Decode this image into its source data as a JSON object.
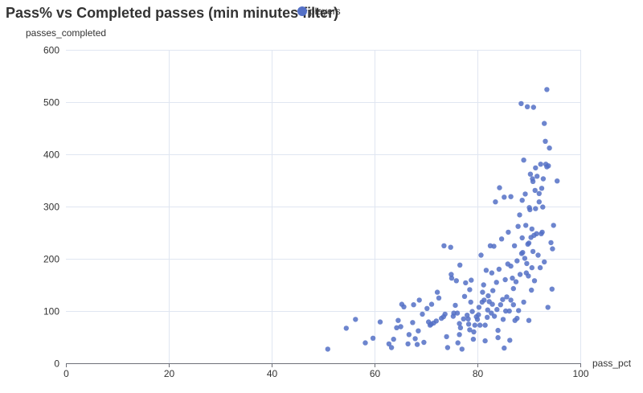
{
  "chart_data": {
    "type": "scatter",
    "title": "Pass% vs Completed passes (min minutes filter)",
    "xlabel": "pass_pct",
    "ylabel": "passes_completed",
    "xlim": [
      0,
      100
    ],
    "ylim": [
      0,
      600
    ],
    "x_ticks": [
      0,
      20,
      40,
      60,
      80,
      100
    ],
    "y_ticks": [
      0,
      100,
      200,
      300,
      400,
      500,
      600
    ],
    "grid": true,
    "legend_position": "top",
    "series": [
      {
        "name": "players",
        "color": "#5470c6",
        "points": [
          [
            50.9,
            27
          ],
          [
            54.5,
            67
          ],
          [
            56.3,
            84
          ],
          [
            58.2,
            39
          ],
          [
            59.7,
            48
          ],
          [
            61.1,
            79
          ],
          [
            62.8,
            37
          ],
          [
            63.3,
            30
          ],
          [
            63.7,
            46
          ],
          [
            64.3,
            68
          ],
          [
            64.6,
            82
          ],
          [
            65.1,
            70
          ],
          [
            65.3,
            113
          ],
          [
            65.7,
            108
          ],
          [
            66.5,
            37
          ],
          [
            67.4,
            78
          ],
          [
            67.6,
            112
          ],
          [
            67.9,
            47
          ],
          [
            68.3,
            36
          ],
          [
            68.5,
            62
          ],
          [
            68.7,
            121
          ],
          [
            69.3,
            94
          ],
          [
            69.6,
            40
          ],
          [
            70.2,
            105
          ],
          [
            70.5,
            79
          ],
          [
            70.8,
            73
          ],
          [
            71.1,
            113
          ],
          [
            71.5,
            77
          ],
          [
            72.0,
            81
          ],
          [
            72.2,
            136
          ],
          [
            72.5,
            125
          ],
          [
            73.0,
            86
          ],
          [
            73.5,
            225
          ],
          [
            73.7,
            94
          ],
          [
            74.0,
            51
          ],
          [
            74.2,
            30
          ],
          [
            74.8,
            222
          ],
          [
            74.9,
            170
          ],
          [
            75.0,
            163
          ],
          [
            75.4,
            96
          ],
          [
            75.7,
            111
          ],
          [
            75.9,
            158
          ],
          [
            76.1,
            96
          ],
          [
            76.2,
            39
          ],
          [
            76.5,
            76
          ],
          [
            76.5,
            55
          ],
          [
            76.6,
            188
          ],
          [
            76.7,
            68
          ],
          [
            77.0,
            27
          ],
          [
            77.3,
            85
          ],
          [
            77.5,
            128
          ],
          [
            77.7,
            154
          ],
          [
            78.0,
            92
          ],
          [
            78.2,
            85
          ],
          [
            78.3,
            75
          ],
          [
            78.5,
            141
          ],
          [
            78.5,
            64
          ],
          [
            78.7,
            117
          ],
          [
            78.8,
            159
          ],
          [
            79.0,
            99
          ],
          [
            79.2,
            46
          ],
          [
            79.5,
            73
          ],
          [
            79.8,
            89
          ],
          [
            80.0,
            84
          ],
          [
            80.2,
            93
          ],
          [
            80.3,
            107
          ],
          [
            80.5,
            73
          ],
          [
            80.7,
            207
          ],
          [
            80.9,
            117
          ],
          [
            81.0,
            136
          ],
          [
            81.2,
            150
          ],
          [
            81.3,
            121
          ],
          [
            81.5,
            73
          ],
          [
            81.5,
            43
          ],
          [
            81.7,
            178
          ],
          [
            81.9,
            88
          ],
          [
            82.0,
            102
          ],
          [
            82.1,
            129
          ],
          [
            82.3,
            118
          ],
          [
            82.5,
            225
          ],
          [
            82.7,
            96
          ],
          [
            82.9,
            113
          ],
          [
            83.0,
            139
          ],
          [
            83.2,
            224
          ],
          [
            83.3,
            90
          ],
          [
            83.5,
            309
          ],
          [
            83.7,
            155
          ],
          [
            83.8,
            103
          ],
          [
            84.0,
            63
          ],
          [
            84.0,
            49
          ],
          [
            84.2,
            180
          ],
          [
            84.3,
            336
          ],
          [
            84.5,
            112
          ],
          [
            84.7,
            238
          ],
          [
            84.9,
            122
          ],
          [
            85.0,
            84
          ],
          [
            85.2,
            29
          ],
          [
            85.2,
            318
          ],
          [
            85.4,
            160
          ],
          [
            85.5,
            100
          ],
          [
            85.7,
            127
          ],
          [
            85.9,
            190
          ],
          [
            86.0,
            251
          ],
          [
            86.2,
            100
          ],
          [
            86.3,
            44
          ],
          [
            86.5,
            121
          ],
          [
            86.5,
            186
          ],
          [
            86.8,
            163
          ],
          [
            87.0,
            143
          ],
          [
            87.0,
            112
          ],
          [
            87.2,
            225
          ],
          [
            87.3,
            82
          ],
          [
            87.5,
            156
          ],
          [
            87.7,
            86
          ],
          [
            87.7,
            196
          ],
          [
            87.9,
            262
          ],
          [
            88.0,
            101
          ],
          [
            88.2,
            284
          ],
          [
            88.3,
            170
          ],
          [
            88.5,
            497
          ],
          [
            88.6,
            210
          ],
          [
            88.7,
            312
          ],
          [
            88.8,
            212
          ],
          [
            89.0,
            117
          ],
          [
            89.0,
            389
          ],
          [
            89.2,
            201
          ],
          [
            89.3,
            324
          ],
          [
            89.4,
            264
          ],
          [
            89.5,
            173
          ],
          [
            89.6,
            191
          ],
          [
            89.7,
            491
          ],
          [
            89.8,
            228
          ],
          [
            89.9,
            167
          ],
          [
            90.0,
            230
          ],
          [
            90.0,
            82
          ],
          [
            90.1,
            298
          ],
          [
            90.2,
            294
          ],
          [
            90.3,
            362
          ],
          [
            90.4,
            241
          ],
          [
            90.5,
            140
          ],
          [
            90.6,
            183
          ],
          [
            90.6,
            257
          ],
          [
            90.7,
            353
          ],
          [
            90.8,
            214
          ],
          [
            90.9,
            490
          ],
          [
            91.0,
            245
          ],
          [
            91.1,
            158
          ],
          [
            91.2,
            331
          ],
          [
            91.3,
            374
          ],
          [
            91.5,
            248
          ],
          [
            91.6,
            358
          ],
          [
            91.8,
            207
          ],
          [
            92.0,
            325
          ],
          [
            92.0,
            309
          ],
          [
            92.2,
            183
          ],
          [
            92.3,
            381
          ],
          [
            92.4,
            248
          ],
          [
            92.5,
            335
          ],
          [
            92.6,
            251
          ],
          [
            92.8,
            353
          ],
          [
            93.0,
            194
          ],
          [
            93.0,
            459
          ],
          [
            93.2,
            425
          ],
          [
            93.3,
            381
          ],
          [
            93.5,
            376
          ],
          [
            93.5,
            524
          ],
          [
            93.7,
            107
          ],
          [
            94.0,
            412
          ],
          [
            94.3,
            231
          ],
          [
            94.5,
            142
          ],
          [
            94.6,
            219
          ],
          [
            94.8,
            264
          ],
          [
            95.5,
            349
          ],
          [
            93.8,
            378
          ],
          [
            92.7,
            299
          ],
          [
            91.3,
            296
          ],
          [
            90.8,
            348
          ],
          [
            86.5,
            319
          ],
          [
            88.7,
            240
          ],
          [
            82.8,
            173
          ],
          [
            79.3,
            60
          ],
          [
            75.3,
            90
          ],
          [
            73.4,
            89
          ],
          [
            71.0,
            75
          ],
          [
            66.7,
            55
          ]
        ]
      }
    ]
  }
}
